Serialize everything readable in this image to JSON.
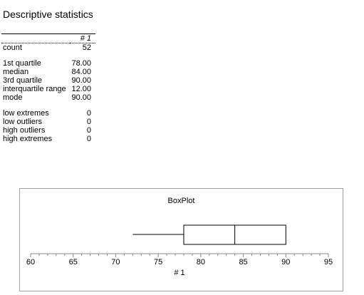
{
  "header": {
    "title": "Descriptive statistics"
  },
  "table": {
    "column_header": "# 1",
    "rows": [
      {
        "label": "count",
        "value": "52"
      },
      {
        "label": "1st quartile",
        "value": "78.00"
      },
      {
        "label": "median",
        "value": "84.00"
      },
      {
        "label": "3rd quartile",
        "value": "90.00"
      },
      {
        "label": "interquartile range",
        "value": "12.00"
      },
      {
        "label": "mode",
        "value": "90.00"
      },
      {
        "label": "low extremes",
        "value": "0"
      },
      {
        "label": "low outliers",
        "value": "0"
      },
      {
        "label": "high outliers",
        "value": "0"
      },
      {
        "label": "high extremes",
        "value": "0"
      }
    ]
  },
  "chart_data": {
    "type": "boxplot",
    "title": "BoxPlot",
    "xlabel": "# 1",
    "xlim": [
      60,
      95
    ],
    "ticks": [
      60,
      65,
      70,
      75,
      80,
      85,
      90,
      95
    ],
    "whisker_low": 72,
    "q1": 78,
    "median": 84,
    "q3": 90,
    "whisker_high": 90,
    "grid": false
  }
}
